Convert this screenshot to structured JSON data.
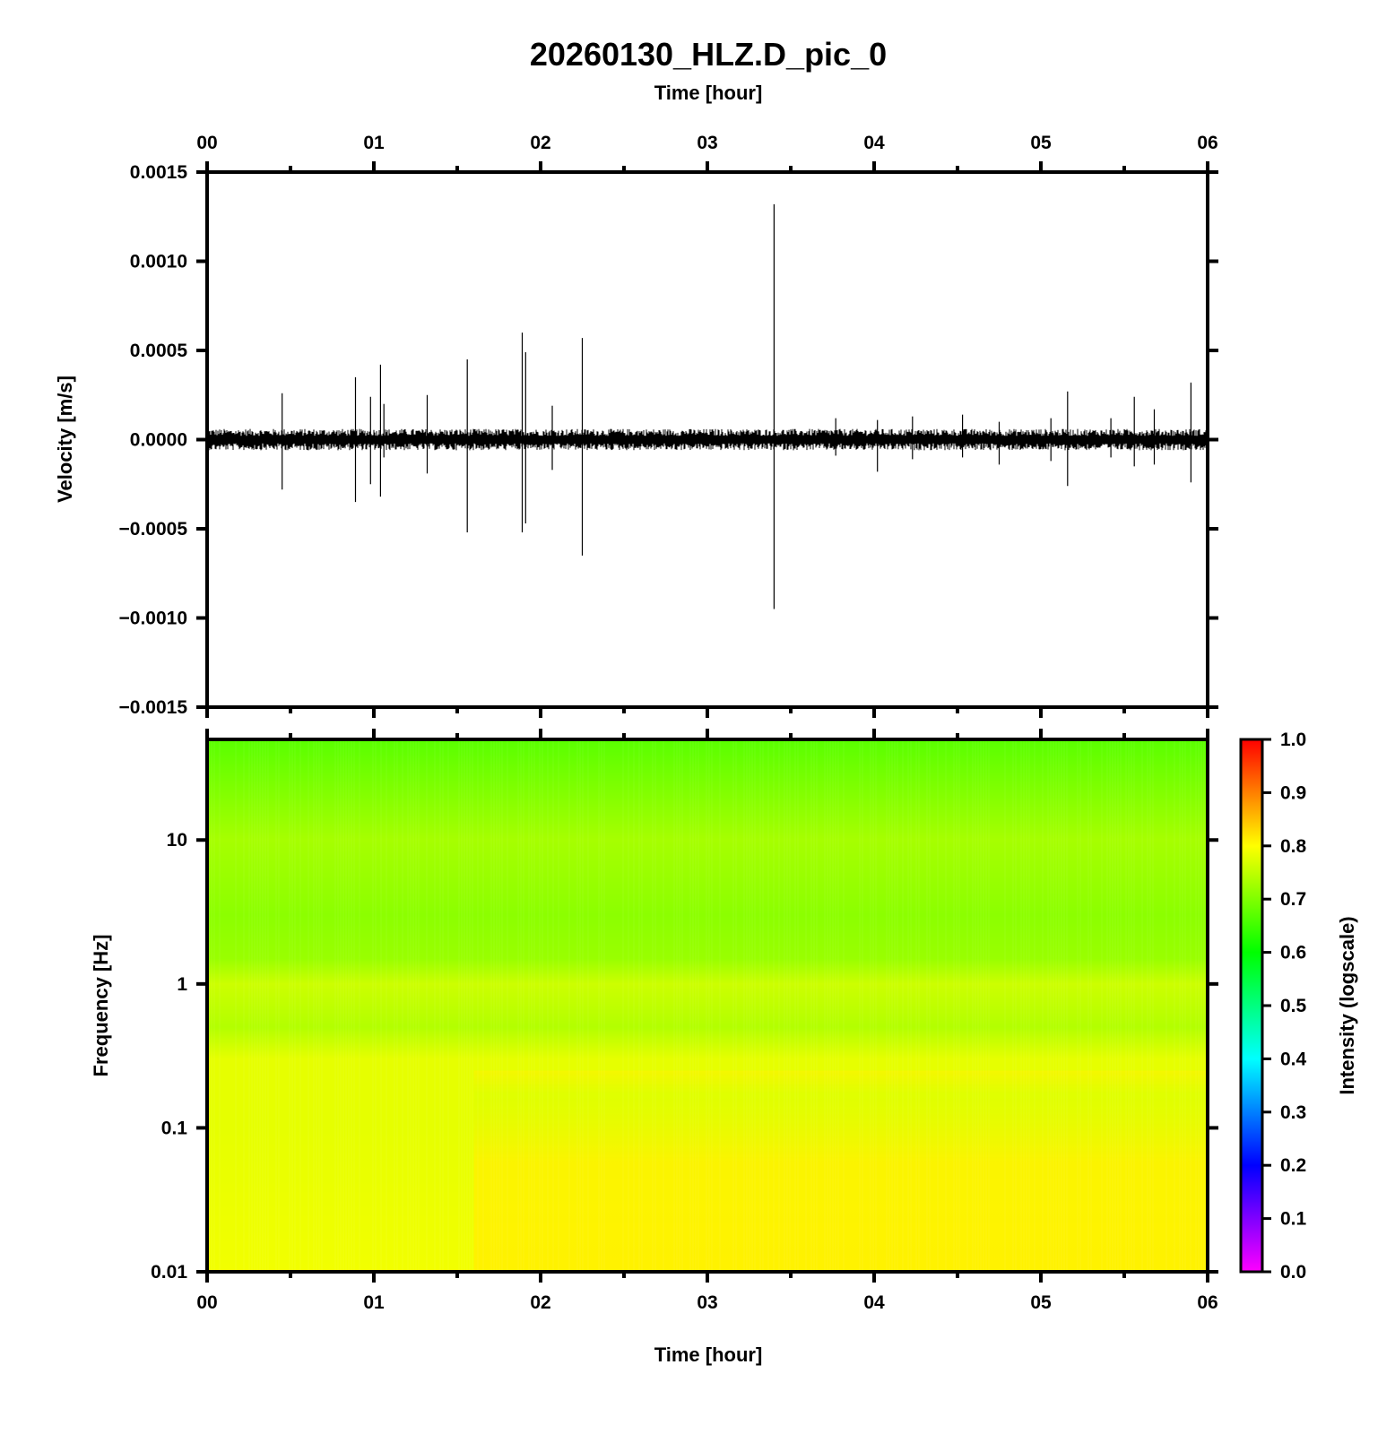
{
  "chart_data": [
    {
      "type": "line",
      "title": "20260130_HLZ.D_pic_0",
      "xlabel": "Time [hour]",
      "ylabel": "Velocity [m/s]",
      "x_ticks": [
        "00",
        "01",
        "02",
        "03",
        "04",
        "05",
        "06"
      ],
      "xlim": [
        0,
        6
      ],
      "y_ticks": [
        "0.0015",
        "0.0010",
        "0.0005",
        "0.0000",
        "−0.0005",
        "−0.0010",
        "−0.0015"
      ],
      "ylim": [
        -0.0015,
        0.0015
      ],
      "noise_amplitude": 6e-05,
      "spikes": [
        {
          "t": 0.45,
          "max": 0.00026,
          "min": -0.00028
        },
        {
          "t": 0.89,
          "max": 0.00035,
          "min": -0.00035
        },
        {
          "t": 0.98,
          "max": 0.00024,
          "min": -0.00025
        },
        {
          "t": 1.04,
          "max": 0.00042,
          "min": -0.00032
        },
        {
          "t": 1.06,
          "max": 0.0002,
          "min": -0.0001
        },
        {
          "t": 1.32,
          "max": 0.00025,
          "min": -0.00019
        },
        {
          "t": 1.56,
          "max": 0.00045,
          "min": -0.00052
        },
        {
          "t": 1.89,
          "max": 0.0006,
          "min": -0.00052
        },
        {
          "t": 1.91,
          "max": 0.00049,
          "min": -0.00047
        },
        {
          "t": 2.07,
          "max": 0.00019,
          "min": -0.00017
        },
        {
          "t": 2.25,
          "max": 0.00057,
          "min": -0.00065
        },
        {
          "t": 3.4,
          "max": 0.00132,
          "min": -0.00095
        },
        {
          "t": 3.77,
          "max": 0.00012,
          "min": -9e-05
        },
        {
          "t": 4.02,
          "max": 0.00011,
          "min": -0.00018
        },
        {
          "t": 4.23,
          "max": 0.00013,
          "min": -0.00011
        },
        {
          "t": 4.53,
          "max": 0.00014,
          "min": -0.0001
        },
        {
          "t": 4.75,
          "max": 0.0001,
          "min": -0.00014
        },
        {
          "t": 5.06,
          "max": 0.00012,
          "min": -0.00012
        },
        {
          "t": 5.16,
          "max": 0.00027,
          "min": -0.00026
        },
        {
          "t": 5.42,
          "max": 0.00012,
          "min": -0.0001
        },
        {
          "t": 5.56,
          "max": 0.00024,
          "min": -0.00015
        },
        {
          "t": 5.68,
          "max": 0.00017,
          "min": -0.00014
        },
        {
          "t": 5.9,
          "max": 0.00032,
          "min": -0.00024
        }
      ]
    },
    {
      "type": "heatmap",
      "xlabel": "Time [hour]",
      "ylabel": "Frequency [Hz]",
      "x_ticks": [
        "00",
        "01",
        "02",
        "03",
        "04",
        "05",
        "06"
      ],
      "xlim": [
        0,
        6
      ],
      "y_scale": "log",
      "y_ticks": [
        "0.01",
        "0.1",
        "1",
        "10"
      ],
      "ylim": [
        0.01,
        50
      ],
      "colorbar": {
        "label": "Intensity (logscale)",
        "ticks": [
          "0.0",
          "0.1",
          "0.2",
          "0.3",
          "0.4",
          "0.5",
          "0.6",
          "0.7",
          "0.8",
          "0.9",
          "1.0"
        ],
        "range": [
          0,
          1
        ],
        "colors": [
          "#ff00ff",
          "#0000ff",
          "#00ffff",
          "#00ff00",
          "#ffff00",
          "#ff0000"
        ]
      },
      "frequency_profile": [
        {
          "f": 0.01,
          "intensity": 0.79
        },
        {
          "f": 0.1,
          "intensity": 0.78
        },
        {
          "f": 0.3,
          "intensity": 0.78
        },
        {
          "f": 0.5,
          "intensity": 0.74
        },
        {
          "f": 1.0,
          "intensity": 0.76
        },
        {
          "f": 1.5,
          "intensity": 0.72
        },
        {
          "f": 3,
          "intensity": 0.71
        },
        {
          "f": 10,
          "intensity": 0.73
        },
        {
          "f": 50,
          "intensity": 0.67
        }
      ],
      "low_frequency_shift": {
        "time_hour": 1.6,
        "intensity_before": 0.77,
        "intensity_after": 0.81
      }
    }
  ]
}
